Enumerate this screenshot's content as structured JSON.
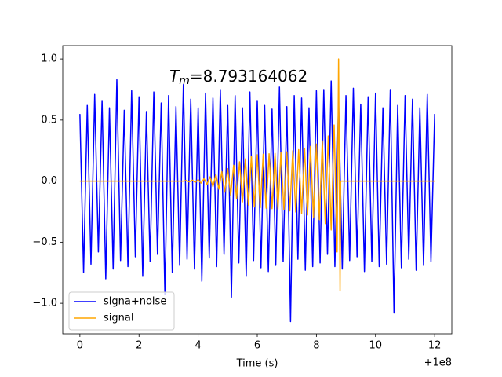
{
  "chart_data": {
    "type": "line",
    "xlabel": "Time (s)",
    "x_offset_label": "+1e8",
    "annotation": {
      "symbol": "T",
      "subscript": "m",
      "text": "=8.793164062"
    },
    "xlim": [
      -0.58,
      12.58
    ],
    "ylim": [
      -1.25,
      1.11
    ],
    "xticks": [
      0,
      2,
      4,
      6,
      8,
      10,
      12
    ],
    "yticks": [
      {
        "value": -1.0,
        "label": "−1.0"
      },
      {
        "value": -0.5,
        "label": "−0.5"
      },
      {
        "value": 0.0,
        "label": "0.0"
      },
      {
        "value": 0.5,
        "label": "0.5"
      },
      {
        "value": 1.0,
        "label": "1.0"
      }
    ],
    "legend": "lower left",
    "series": [
      {
        "name": "signa+noise",
        "color": "#0000ff",
        "x": [
          0,
          0.125,
          0.25,
          0.375,
          0.5,
          0.625,
          0.75,
          0.875,
          1,
          1.125,
          1.25,
          1.375,
          1.5,
          1.625,
          1.75,
          1.875,
          2,
          2.125,
          2.25,
          2.375,
          2.5,
          2.625,
          2.75,
          2.875,
          3,
          3.125,
          3.25,
          3.375,
          3.5,
          3.625,
          3.75,
          3.875,
          4,
          4.125,
          4.25,
          4.375,
          4.5,
          4.625,
          4.75,
          4.875,
          5,
          5.125,
          5.25,
          5.375,
          5.5,
          5.625,
          5.75,
          5.875,
          6,
          6.125,
          6.25,
          6.375,
          6.5,
          6.625,
          6.75,
          6.875,
          7,
          7.125,
          7.25,
          7.375,
          7.5,
          7.625,
          7.75,
          7.875,
          8,
          8.125,
          8.25,
          8.375,
          8.5,
          8.625,
          8.75,
          8.875,
          9,
          9.125,
          9.25,
          9.375,
          9.5,
          9.625,
          9.75,
          9.875,
          10,
          10.125,
          10.25,
          10.375,
          10.5,
          10.625,
          10.75,
          10.875,
          11,
          11.125,
          11.25,
          11.375,
          11.5,
          11.625,
          11.75,
          11.875,
          12
        ],
        "values": [
          0.55,
          -0.75,
          0.62,
          -0.68,
          0.71,
          -0.58,
          0.66,
          -0.8,
          0.6,
          -0.72,
          0.83,
          -0.65,
          0.58,
          -0.7,
          0.74,
          -0.62,
          0.69,
          -0.78,
          0.57,
          -0.66,
          0.73,
          -0.6,
          0.64,
          -0.93,
          0.7,
          -0.75,
          0.61,
          -0.69,
          0.79,
          -0.64,
          0.67,
          -0.72,
          0.6,
          -0.82,
          0.72,
          -0.63,
          0.68,
          -0.7,
          0.75,
          -0.6,
          0.62,
          -0.95,
          0.7,
          -0.67,
          0.6,
          -0.78,
          0.73,
          -0.65,
          0.66,
          -0.71,
          0.62,
          -0.74,
          0.59,
          -0.69,
          0.77,
          -0.66,
          0.61,
          -1.15,
          0.7,
          -0.64,
          0.68,
          -0.73,
          0.6,
          -0.7,
          0.74,
          -0.67,
          0.75,
          -0.6,
          0.82,
          -0.7,
          0.65,
          -0.72,
          0.7,
          -0.65,
          0.76,
          -0.62,
          0.63,
          -0.74,
          0.69,
          -0.66,
          0.72,
          -0.7,
          0.6,
          -0.68,
          0.75,
          -1.08,
          0.62,
          -0.71,
          0.7,
          -0.64,
          0.67,
          -0.73,
          0.6,
          -0.69,
          0.71,
          -0.66,
          0.55
        ]
      },
      {
        "name": "signal",
        "color": "#ffa500",
        "x": [
          0,
          3.5,
          3.6,
          3.7,
          3.8,
          3.9,
          4.0,
          4.1,
          4.2,
          4.3,
          4.4,
          4.5,
          4.6,
          4.7,
          4.8,
          4.9,
          5.0,
          5.1,
          5.2,
          5.3,
          5.4,
          5.5,
          5.6,
          5.7,
          5.8,
          5.9,
          6.0,
          6.1,
          6.2,
          6.3,
          6.4,
          6.5,
          6.6,
          6.7,
          6.8,
          6.9,
          7.0,
          7.1,
          7.2,
          7.3,
          7.4,
          7.5,
          7.6,
          7.7,
          7.8,
          7.9,
          8.0,
          8.1,
          8.2,
          8.3,
          8.4,
          8.5,
          8.6,
          8.7,
          8.75,
          8.8,
          8.82,
          12
        ],
        "values": [
          0,
          0,
          0.005,
          -0.006,
          0.008,
          -0.01,
          0.012,
          -0.016,
          0.02,
          -0.027,
          0.035,
          -0.045,
          0.055,
          -0.066,
          0.078,
          -0.09,
          0.103,
          -0.116,
          0.13,
          -0.144,
          0.158,
          -0.17,
          0.182,
          -0.195,
          0.205,
          -0.212,
          0.216,
          -0.218,
          0.22,
          -0.222,
          0.224,
          -0.226,
          0.228,
          -0.23,
          0.233,
          -0.236,
          0.24,
          -0.244,
          0.248,
          -0.253,
          0.258,
          -0.264,
          0.27,
          -0.277,
          0.285,
          -0.294,
          0.304,
          -0.316,
          0.33,
          -0.348,
          0.37,
          -0.4,
          0.46,
          -0.58,
          1.0,
          -0.9,
          0,
          0
        ]
      }
    ]
  }
}
